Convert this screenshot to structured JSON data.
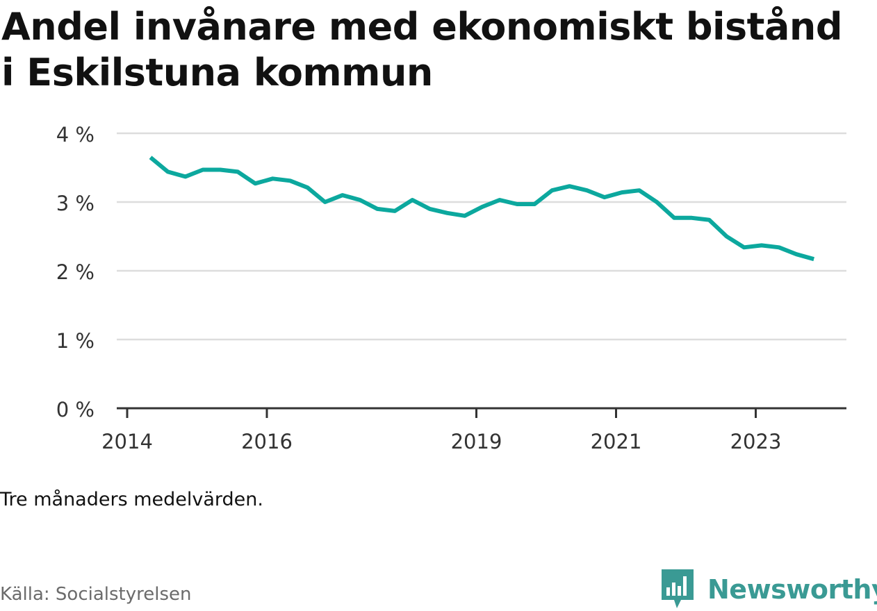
{
  "title": "Andel invånare med ekonomiskt bistånd i Eskilstuna kommun",
  "note": "Tre månaders medelvärden.",
  "source": "Källa: Socialstyrelsen",
  "brand": {
    "name": "Newsworthy",
    "color": "#3a9a94",
    "icon": "chart-speech-bubble-icon"
  },
  "colors": {
    "line": "#0ca89e",
    "grid": "#dddddd",
    "axis": "#333333"
  },
  "chart_data": {
    "type": "line",
    "title": "Andel invånare med ekonomiskt bistånd i Eskilstuna kommun",
    "xlabel": "",
    "ylabel": "",
    "ylim": [
      0,
      4
    ],
    "y_ticks": [
      {
        "value": 0,
        "label": "0 %"
      },
      {
        "value": 1,
        "label": "1 %"
      },
      {
        "value": 2,
        "label": "2 %"
      },
      {
        "value": 3,
        "label": "3 %"
      },
      {
        "value": 4,
        "label": "4 %"
      }
    ],
    "x_ticks": [
      "2014",
      "2016",
      "2019",
      "2021",
      "2023"
    ],
    "grid": true,
    "series": [
      {
        "points": [
          {
            "x": "2014-05",
            "y": 3.65
          },
          {
            "x": "2014-08",
            "y": 3.44
          },
          {
            "x": "2014-11",
            "y": 3.37
          },
          {
            "x": "2015-02",
            "y": 3.47
          },
          {
            "x": "2015-05",
            "y": 3.47
          },
          {
            "x": "2015-08",
            "y": 3.44
          },
          {
            "x": "2015-11",
            "y": 3.27
          },
          {
            "x": "2016-02",
            "y": 3.34
          },
          {
            "x": "2016-05",
            "y": 3.31
          },
          {
            "x": "2016-08",
            "y": 3.21
          },
          {
            "x": "2016-11",
            "y": 3.0
          },
          {
            "x": "2017-02",
            "y": 3.1
          },
          {
            "x": "2017-05",
            "y": 3.03
          },
          {
            "x": "2017-08",
            "y": 2.9
          },
          {
            "x": "2017-11",
            "y": 2.87
          },
          {
            "x": "2018-02",
            "y": 3.03
          },
          {
            "x": "2018-05",
            "y": 2.9
          },
          {
            "x": "2018-08",
            "y": 2.84
          },
          {
            "x": "2018-11",
            "y": 2.8
          },
          {
            "x": "2019-02",
            "y": 2.93
          },
          {
            "x": "2019-05",
            "y": 3.03
          },
          {
            "x": "2019-08",
            "y": 2.97
          },
          {
            "x": "2019-11",
            "y": 2.97
          },
          {
            "x": "2020-02",
            "y": 3.17
          },
          {
            "x": "2020-05",
            "y": 3.23
          },
          {
            "x": "2020-08",
            "y": 3.17
          },
          {
            "x": "2020-11",
            "y": 3.07
          },
          {
            "x": "2021-02",
            "y": 3.14
          },
          {
            "x": "2021-05",
            "y": 3.17
          },
          {
            "x": "2021-08",
            "y": 3.0
          },
          {
            "x": "2021-11",
            "y": 2.77
          },
          {
            "x": "2022-02",
            "y": 2.77
          },
          {
            "x": "2022-05",
            "y": 2.74
          },
          {
            "x": "2022-08",
            "y": 2.5
          },
          {
            "x": "2022-11",
            "y": 2.34
          },
          {
            "x": "2023-02",
            "y": 2.37
          },
          {
            "x": "2023-05",
            "y": 2.34
          },
          {
            "x": "2023-08",
            "y": 2.24
          },
          {
            "x": "2023-11",
            "y": 2.17
          }
        ]
      }
    ]
  }
}
